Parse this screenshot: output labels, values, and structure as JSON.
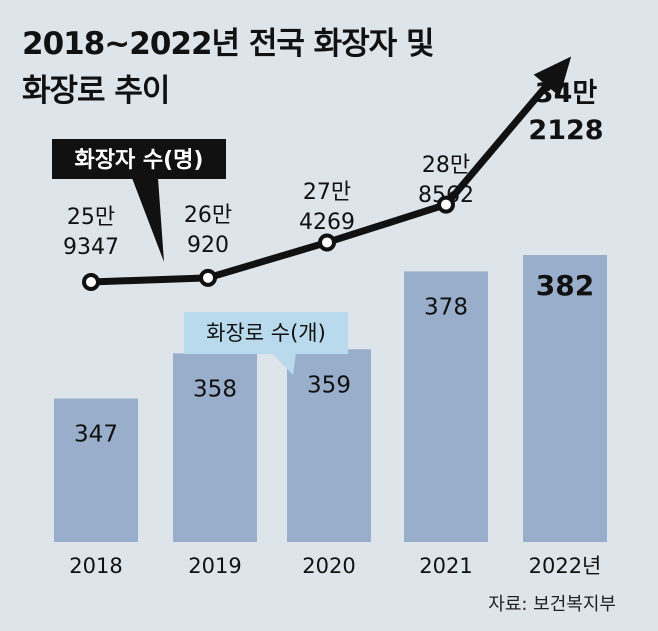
{
  "title_line1": "2018~2022년 전국 화장자 및",
  "title_line2": "화장로 추이",
  "source": "자료: 보건복지부",
  "chart_data": {
    "type": "bar+line",
    "categories": [
      "2018",
      "2019",
      "2020",
      "2021",
      "2022년"
    ],
    "series": [
      {
        "name": "화장자 수(명)",
        "type": "line",
        "values": [
          259347,
          260920,
          274269,
          288562,
          342128
        ],
        "labels": [
          [
            "25만",
            "9347"
          ],
          [
            "26만",
            "920"
          ],
          [
            "27만",
            "4269"
          ],
          [
            "28만",
            "8562"
          ],
          [
            "34만",
            "2128"
          ]
        ]
      },
      {
        "name": "화장로 수(개)",
        "type": "bar",
        "values": [
          347,
          358,
          359,
          378,
          382
        ],
        "labels": [
          "347",
          "358",
          "359",
          "378",
          "382"
        ]
      }
    ],
    "line_color": "#111111",
    "bar_color": "#99aecb",
    "legend1_color": "#111111",
    "legend2_color": "#b9d9ec"
  }
}
